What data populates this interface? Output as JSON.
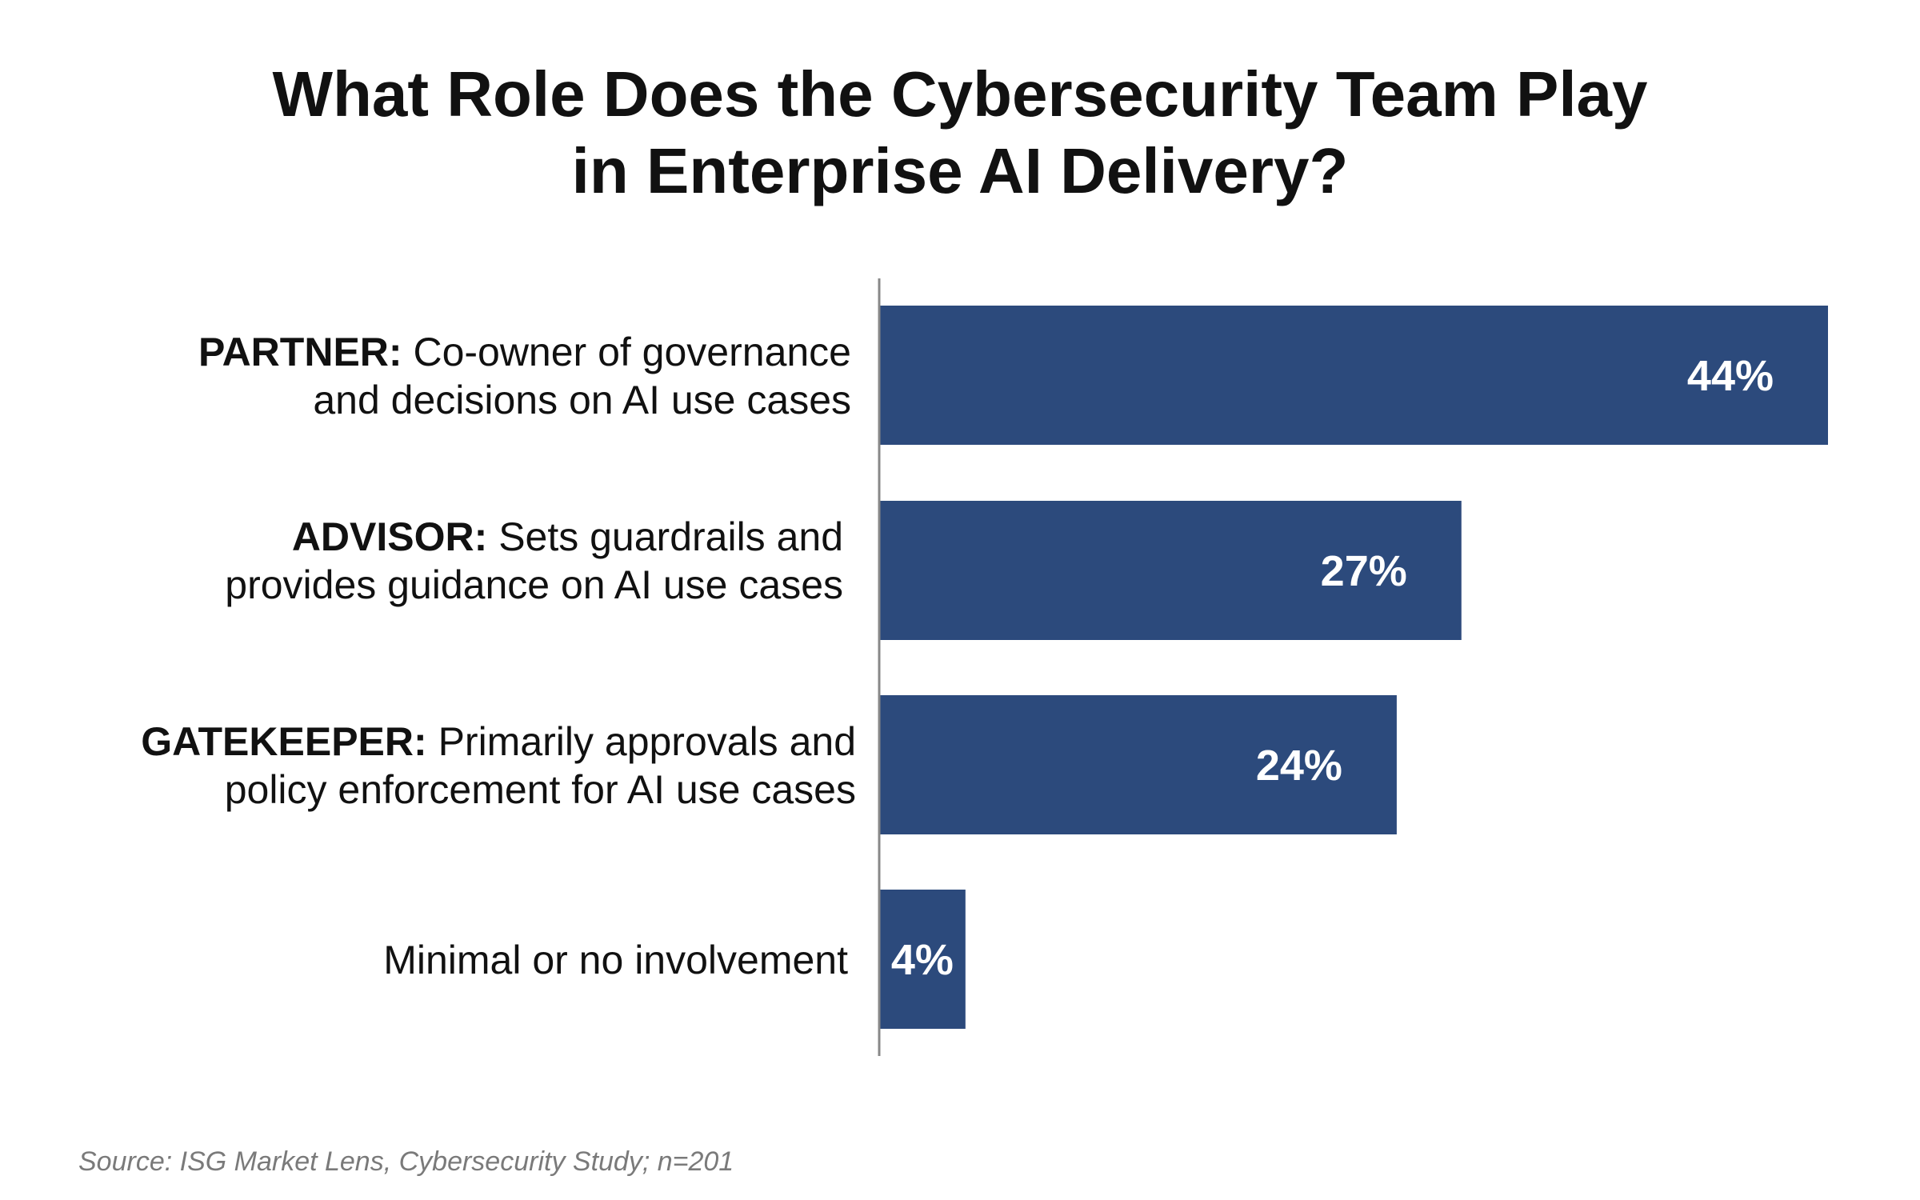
{
  "chart_data": {
    "type": "bar",
    "orientation": "horizontal",
    "title_lines": [
      "What Role Does the Cybersecurity Team Play",
      "in Enterprise AI Delivery?"
    ],
    "categories": [
      {
        "lead": "PARTNER:",
        "line1_rest": " Co-owner of governance",
        "line2": "and decisions on AI use cases"
      },
      {
        "lead": "ADVISOR:",
        "line1_rest": " Sets guardrails and",
        "line2": "provides guidance on AI use cases"
      },
      {
        "lead": "GATEKEEPER:",
        "line1_rest": " Primarily approvals and",
        "line2": "policy enforcement for AI use cases"
      },
      {
        "lead": "",
        "line1_rest": "Minimal or no involvement",
        "line2": ""
      }
    ],
    "values": [
      44,
      27,
      24,
      4
    ],
    "value_labels": [
      "44%",
      "27%",
      "24%",
      "4%"
    ],
    "xlim": [
      0,
      44
    ],
    "grid": false,
    "legend": "none",
    "colors": {
      "bar": "#2c4a7c",
      "axis": "#888888",
      "value_label": "#ffffff"
    },
    "source": "Source: ISG Market Lens, Cybersecurity Study; n=201"
  }
}
